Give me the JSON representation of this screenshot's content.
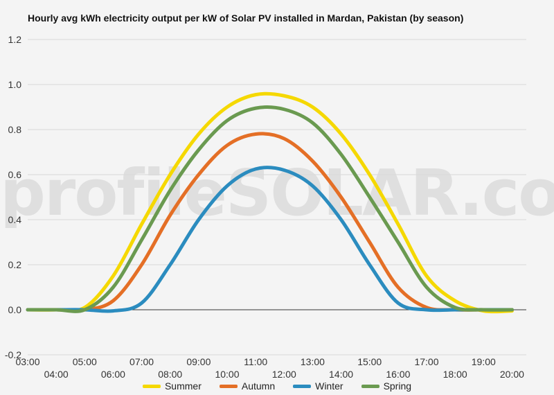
{
  "chart_data": {
    "type": "line",
    "title": "Hourly avg kWh electricity output per kW of Solar PV installed in Mardan, Pakistan (by season)",
    "watermark": "profileSOLAR.com",
    "ylim": [
      -0.2,
      1.2
    ],
    "yticks": [
      "-0.2",
      "0.0",
      "0.2",
      "0.4",
      "0.6",
      "0.8",
      "1.0",
      "1.2"
    ],
    "ytick_values": [
      -0.2,
      0,
      0.2,
      0.4,
      0.6,
      0.8,
      1.0,
      1.2
    ],
    "xlim": [
      3,
      20.5
    ],
    "xticks": [
      "03:00",
      "04:00",
      "05:00",
      "06:00",
      "07:00",
      "08:00",
      "09:00",
      "10:00",
      "11:00",
      "12:00",
      "13:00",
      "14:00",
      "15:00",
      "16:00",
      "17:00",
      "18:00",
      "19:00",
      "20:00"
    ],
    "xtick_values": [
      3,
      4,
      5,
      6,
      7,
      8,
      9,
      10,
      11,
      12,
      13,
      14,
      15,
      16,
      17,
      18,
      19,
      20
    ],
    "grid": true,
    "legend_position": "bottom",
    "x": [
      3,
      4,
      5,
      6,
      7,
      8,
      9,
      10,
      11,
      12,
      13,
      14,
      15,
      16,
      17,
      18,
      19,
      20
    ],
    "series": [
      {
        "name": "Summer",
        "color": "#f5d800",
        "values": [
          0,
          0,
          0.01,
          0.15,
          0.38,
          0.6,
          0.78,
          0.9,
          0.955,
          0.95,
          0.9,
          0.78,
          0.6,
          0.38,
          0.15,
          0.04,
          -0.005,
          -0.005
        ]
      },
      {
        "name": "Autumn",
        "color": "#e46f26",
        "values": [
          0,
          0,
          0,
          0.04,
          0.2,
          0.42,
          0.6,
          0.73,
          0.78,
          0.76,
          0.66,
          0.5,
          0.3,
          0.1,
          0.01,
          0,
          0,
          0
        ]
      },
      {
        "name": "Winter",
        "color": "#2b8cbf",
        "values": [
          0,
          0,
          0,
          -0.005,
          0.03,
          0.2,
          0.4,
          0.55,
          0.625,
          0.62,
          0.55,
          0.4,
          0.2,
          0.03,
          0,
          0,
          0,
          0
        ]
      },
      {
        "name": "Spring",
        "color": "#6a9a50",
        "values": [
          0,
          0,
          0,
          0.1,
          0.31,
          0.53,
          0.71,
          0.84,
          0.895,
          0.89,
          0.83,
          0.69,
          0.5,
          0.3,
          0.1,
          0.01,
          0,
          0
        ]
      }
    ]
  }
}
